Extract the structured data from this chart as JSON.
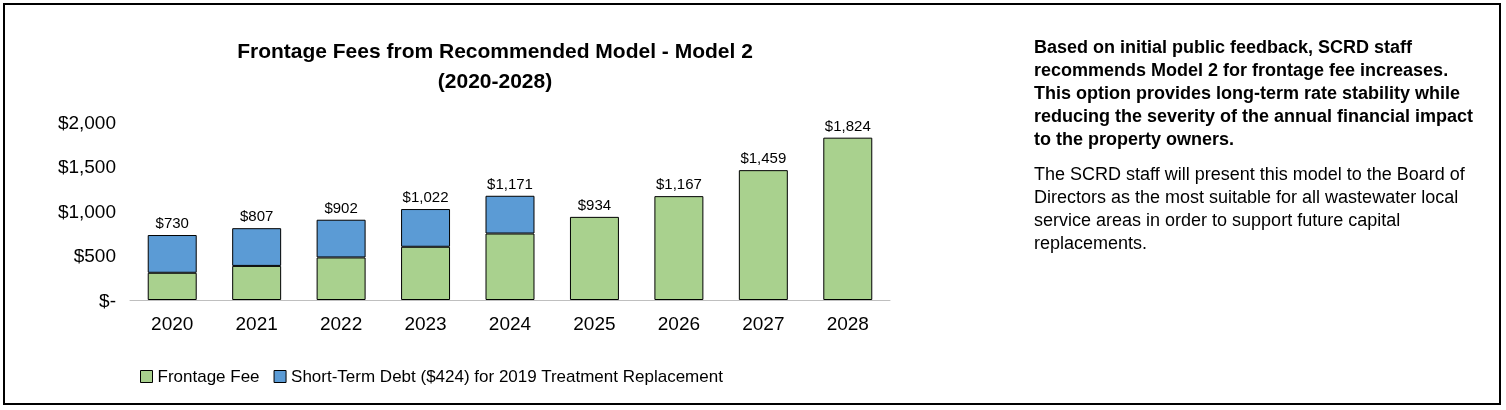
{
  "chart_data": {
    "type": "bar",
    "title": "Frontage Fees from Recommended Model - Model 2\n(2020-2028)",
    "categories": [
      "2020",
      "2021",
      "2022",
      "2023",
      "2024",
      "2025",
      "2026",
      "2027",
      "2028"
    ],
    "stacked": true,
    "series": [
      {
        "name": "Frontage Fee",
        "color": "#a9d18e",
        "values": [
          306,
          383,
          478,
          598,
          747,
          934,
          1167,
          1459,
          1824
        ]
      },
      {
        "name": "Short-Term Debt ($424) for 2019 Treatment Replacement",
        "color": "#5b9bd5",
        "values": [
          424,
          424,
          424,
          424,
          424,
          null,
          null,
          null,
          null
        ]
      }
    ],
    "totals": [
      "$730",
      "$807",
      "$902",
      "$1,022",
      "$1,171",
      "$934",
      "$1,167",
      "$1,459",
      "$1,824"
    ],
    "ylim": [
      0,
      2000
    ],
    "yticks": [
      {
        "value": 0,
        "label": "$-"
      },
      {
        "value": 500,
        "label": "$500"
      },
      {
        "value": 1000,
        "label": "$1,000"
      },
      {
        "value": 1500,
        "label": "$1,500"
      },
      {
        "value": 2000,
        "label": "$2,000"
      }
    ],
    "grid": false,
    "legend": "bottom left",
    "annotations": [
      "Based on initial public feedback, SCRD staff recommends Model 2 for frontage fee increases. This option provides long-term rate stability while reducing the severity of the annual financial impact to the property owners.",
      "The SCRD staff will present this model to the Board of Directors as the most suitable for all wastewater local service areas in order to support future capital replacements."
    ]
  }
}
